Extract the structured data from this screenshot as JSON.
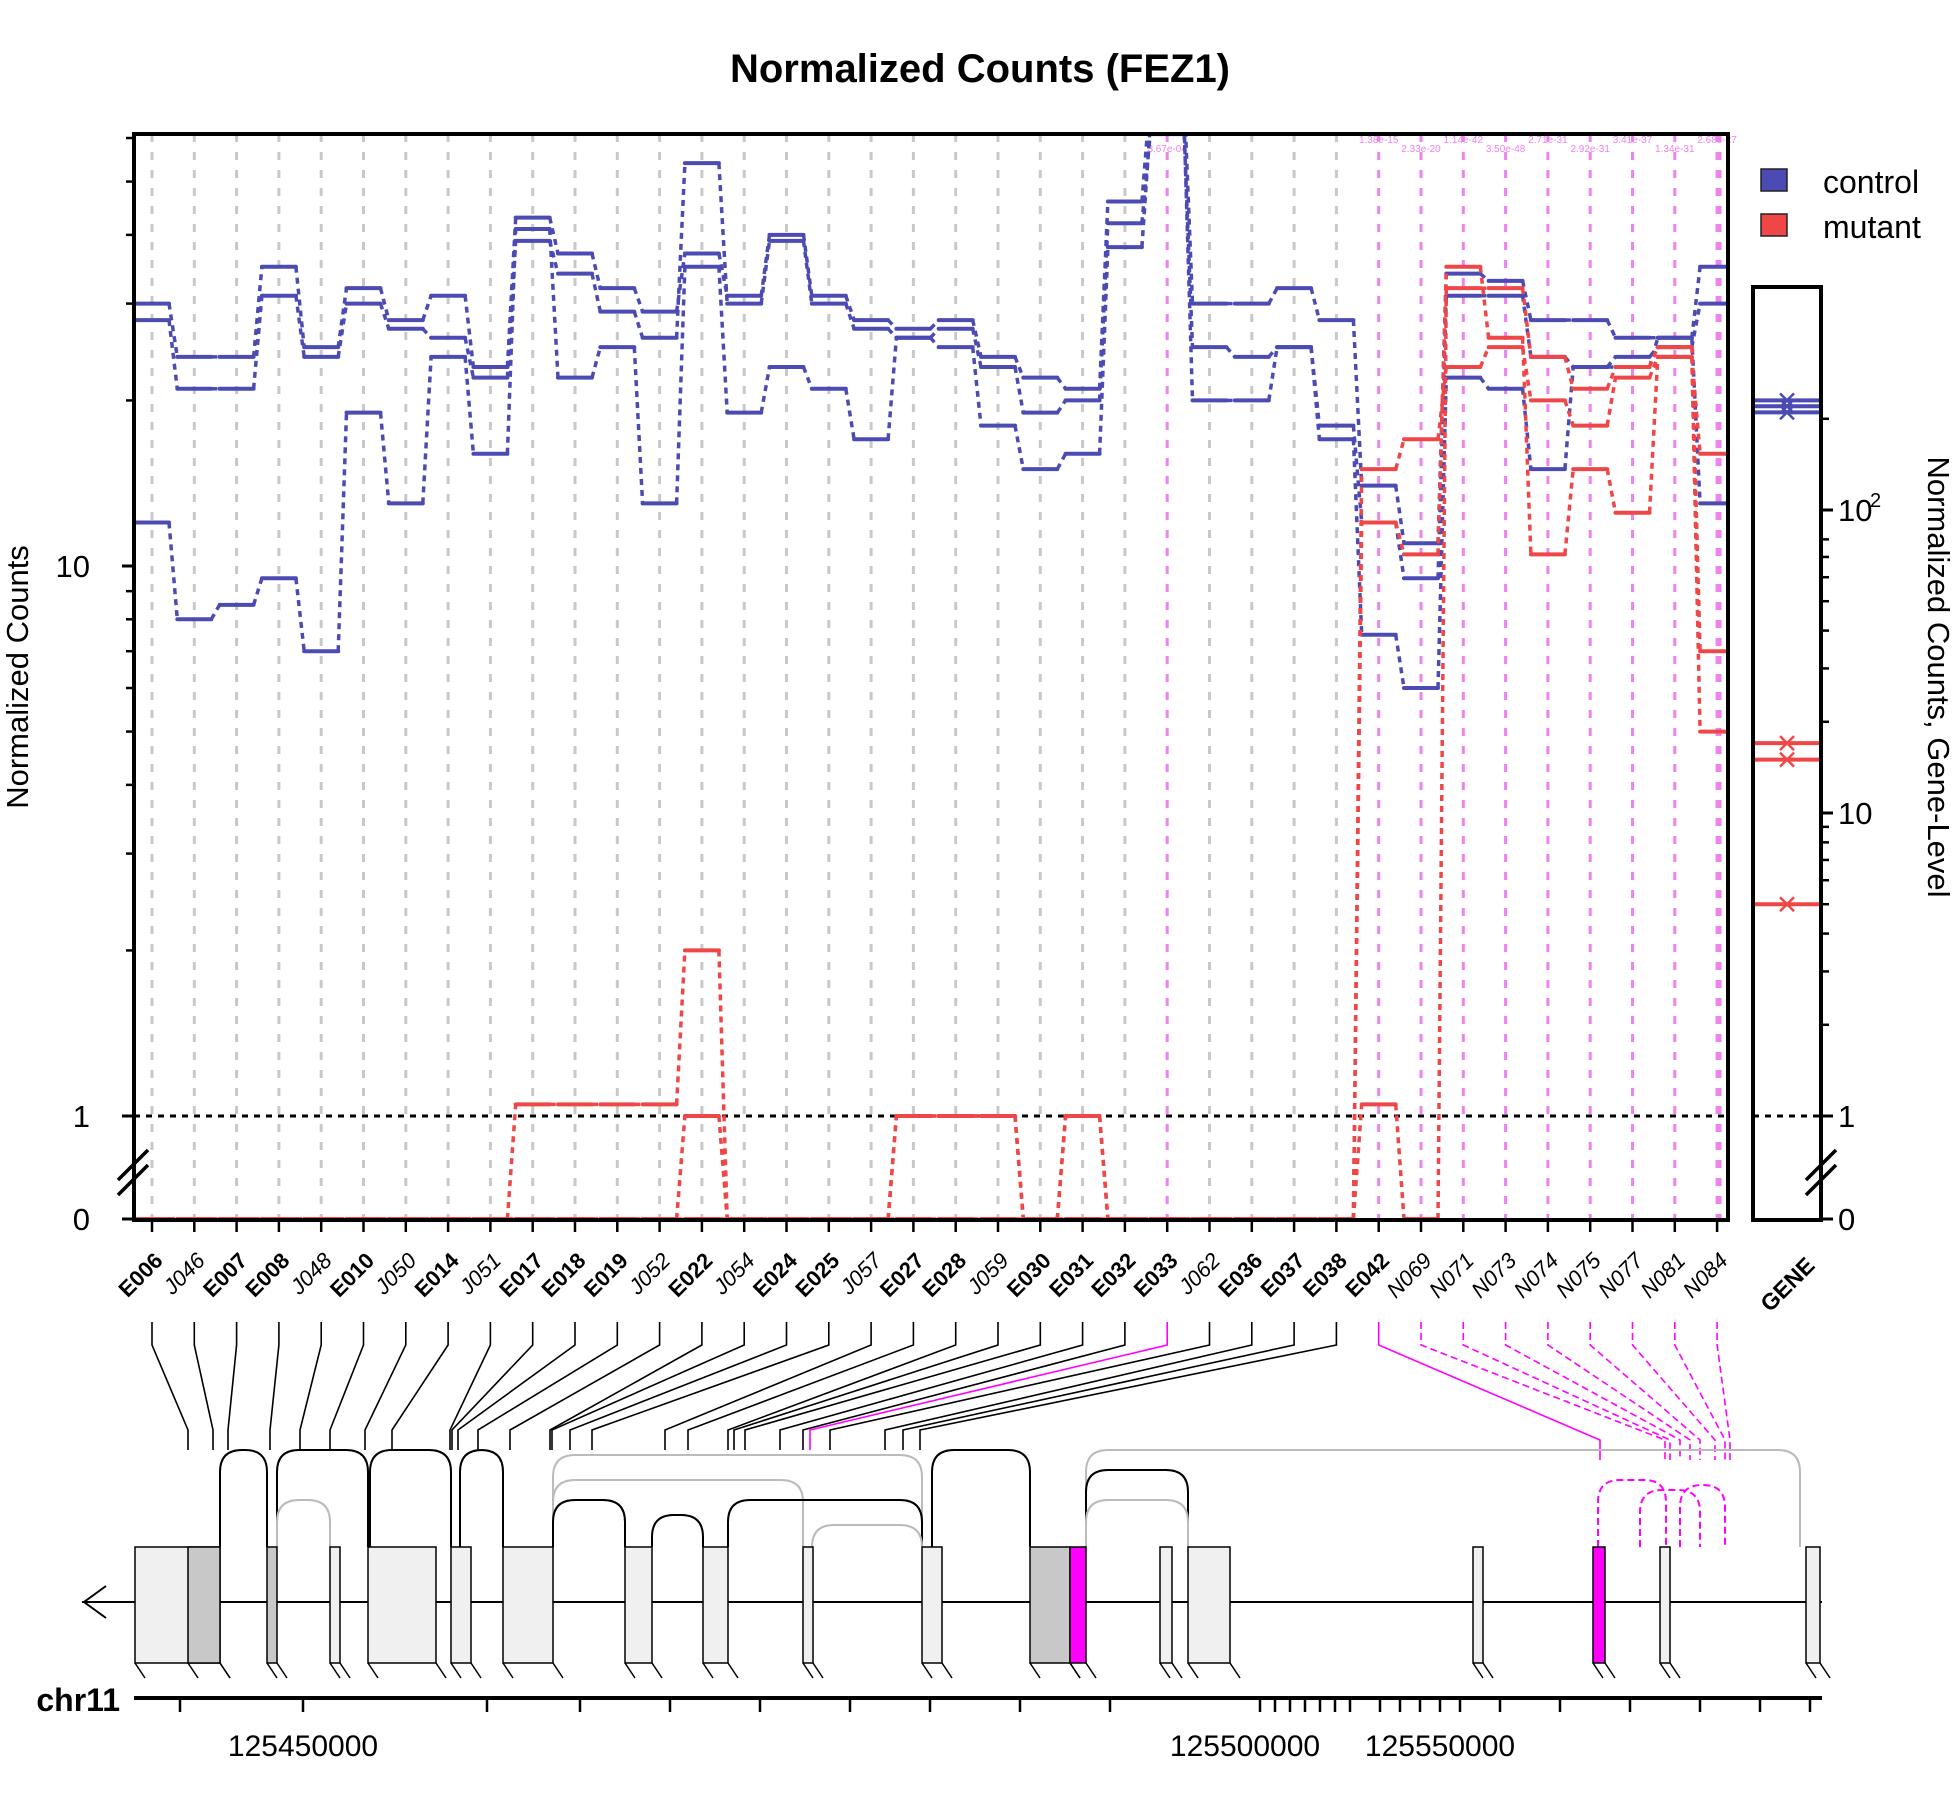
{
  "chart_data": {
    "type": "line",
    "title": "Normalized Counts (FEZ1)",
    "ylabel": "Normalized Counts",
    "ylabel_right": "Normalized Counts, Gene-Level",
    "y_scale": "log10 with broken axis (0 below break)",
    "yticks_left": [
      "0",
      "1",
      "10"
    ],
    "yticks_right": [
      "0",
      "1",
      "10",
      "10^2"
    ],
    "legend": {
      "placement": "top-right",
      "entries": [
        {
          "name": "control",
          "color": "#4b4bb3"
        },
        {
          "name": "mutant",
          "color": "#ef4747"
        }
      ]
    },
    "features": [
      {
        "id": "E006",
        "kind": "exon"
      },
      {
        "id": "J046",
        "kind": "junction"
      },
      {
        "id": "E007",
        "kind": "exon"
      },
      {
        "id": "E008",
        "kind": "exon"
      },
      {
        "id": "J048",
        "kind": "junction"
      },
      {
        "id": "E010",
        "kind": "exon"
      },
      {
        "id": "J050",
        "kind": "junction"
      },
      {
        "id": "E014",
        "kind": "exon"
      },
      {
        "id": "J051",
        "kind": "junction"
      },
      {
        "id": "E017",
        "kind": "exon"
      },
      {
        "id": "E018",
        "kind": "exon"
      },
      {
        "id": "E019",
        "kind": "exon"
      },
      {
        "id": "J052",
        "kind": "junction"
      },
      {
        "id": "E022",
        "kind": "exon"
      },
      {
        "id": "J054",
        "kind": "junction"
      },
      {
        "id": "E024",
        "kind": "exon"
      },
      {
        "id": "E025",
        "kind": "exon"
      },
      {
        "id": "J057",
        "kind": "junction"
      },
      {
        "id": "E027",
        "kind": "exon"
      },
      {
        "id": "E028",
        "kind": "exon"
      },
      {
        "id": "J059",
        "kind": "junction"
      },
      {
        "id": "E030",
        "kind": "exon"
      },
      {
        "id": "E031",
        "kind": "exon"
      },
      {
        "id": "E032",
        "kind": "exon"
      },
      {
        "id": "E033",
        "kind": "exon"
      },
      {
        "id": "J062",
        "kind": "junction"
      },
      {
        "id": "E036",
        "kind": "exon"
      },
      {
        "id": "E037",
        "kind": "exon"
      },
      {
        "id": "E038",
        "kind": "exon"
      },
      {
        "id": "E042",
        "kind": "exon"
      },
      {
        "id": "N069",
        "kind": "novel"
      },
      {
        "id": "N071",
        "kind": "novel"
      },
      {
        "id": "N073",
        "kind": "novel"
      },
      {
        "id": "N074",
        "kind": "novel"
      },
      {
        "id": "N075",
        "kind": "novel"
      },
      {
        "id": "N077",
        "kind": "novel"
      },
      {
        "id": "N081",
        "kind": "novel"
      },
      {
        "id": "N084",
        "kind": "novel"
      }
    ],
    "gene_label": "GENE",
    "significant_features": [
      "E033",
      "E042",
      "N069",
      "N071",
      "N073",
      "N074",
      "N075",
      "N077",
      "N081",
      "N084"
    ],
    "pvalue_labels": [
      "3.67e-04",
      "1.38e-15",
      "2.33e-20",
      "1.14e-42",
      "3.50e-48",
      "2.71e-31",
      "2.92e-31",
      "3.41e-37",
      "1.34e-31",
      "2.68e-27"
    ],
    "series": [
      {
        "name": "control",
        "color": "#4b4bb3",
        "values": [
          30,
          24,
          24,
          35,
          25,
          32,
          28,
          31,
          23,
          43,
          37,
          32,
          29,
          37,
          31,
          40,
          31,
          28,
          27,
          28,
          24,
          22,
          21,
          46,
          71,
          30,
          30,
          32,
          28,
          14,
          11,
          34,
          33,
          28,
          28,
          26,
          26,
          35
        ],
        "gene_level": 230
      },
      {
        "name": "control",
        "color": "#4b4bb3",
        "values": [
          28,
          21,
          21,
          31,
          24,
          30,
          27,
          26,
          22,
          39,
          34,
          29,
          26,
          54,
          30,
          39,
          30,
          27,
          26,
          27,
          23,
          19,
          20,
          42,
          61,
          25,
          24,
          25,
          18,
          12,
          9.5,
          31,
          31,
          24,
          23,
          24,
          25,
          30
        ],
        "gene_level": 210
      },
      {
        "name": "control",
        "color": "#4b4bb3",
        "values": [
          12,
          8,
          8.5,
          9.5,
          7,
          19,
          13,
          24,
          16,
          41,
          22,
          25,
          13,
          35,
          19,
          23,
          21,
          17,
          26,
          25,
          18,
          15,
          16,
          38,
          63,
          20,
          20,
          25,
          17,
          7.5,
          6,
          22,
          21,
          15,
          23,
          23,
          26,
          13
        ],
        "gene_level": 220
      },
      {
        "name": "mutant",
        "color": "#ef4747",
        "values": [
          0,
          0,
          0,
          0,
          0,
          0,
          0,
          0,
          0,
          1.05,
          1.05,
          1.05,
          1.05,
          2,
          0,
          0,
          0,
          0,
          1,
          1,
          1,
          0,
          1,
          0,
          0,
          0,
          0,
          0,
          0,
          1.05,
          0,
          32,
          32,
          24,
          21,
          23,
          25,
          7
        ],
        "gene_level": 17
      },
      {
        "name": "mutant",
        "color": "#ef4747",
        "values": [
          0,
          0,
          0,
          0,
          0,
          0,
          0,
          0,
          0,
          0,
          0,
          0,
          0,
          1,
          0,
          0,
          0,
          0,
          1,
          1,
          1,
          0,
          1,
          0,
          0,
          0,
          0,
          0,
          0,
          15,
          17,
          23,
          25,
          20,
          18,
          22,
          24,
          5
        ],
        "gene_level": 15
      },
      {
        "name": "mutant",
        "color": "#ef4747",
        "values": [
          0,
          0,
          0,
          0,
          0,
          0,
          0,
          0,
          0,
          0,
          0,
          0,
          0,
          0,
          0,
          0,
          0,
          0,
          0,
          0,
          0,
          0,
          0,
          0,
          0,
          0,
          0,
          0,
          0,
          12,
          10.5,
          35,
          26,
          10.5,
          15,
          12.5,
          24,
          16
        ],
        "gene_level": 5
      }
    ]
  },
  "genome": {
    "chromosome": "chr11",
    "tick_labels": [
      "125450000",
      "125500000",
      "125550000"
    ],
    "strand_arrow": "left"
  }
}
